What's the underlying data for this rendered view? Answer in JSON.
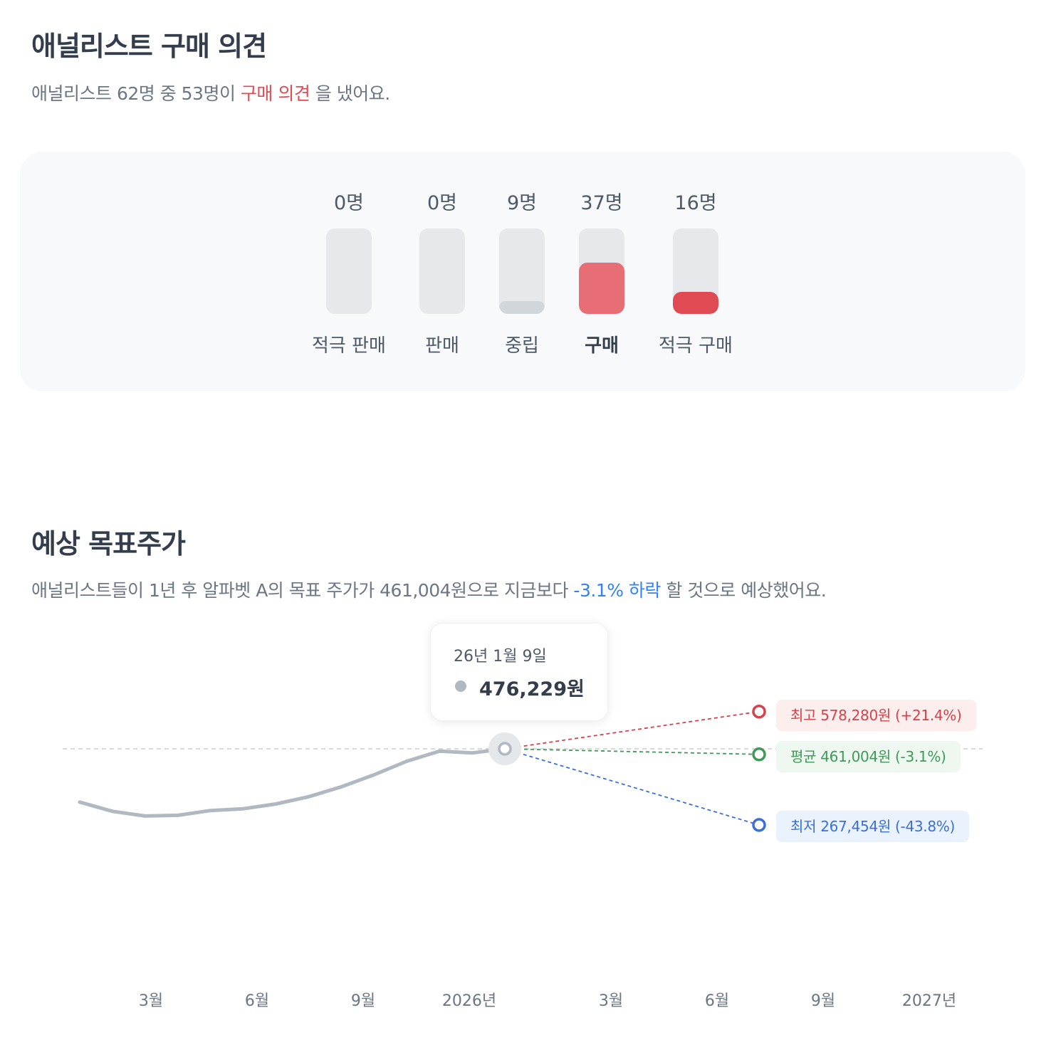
{
  "opinion": {
    "title": "애널리스트 구매 의견",
    "summary_prefix": "애널리스트 62명 중 53명이 ",
    "summary_highlight": "구매 의견",
    "summary_suffix": " 을 냈어요.",
    "columns": [
      {
        "count": "0명",
        "label": "적극 판매",
        "value": 0
      },
      {
        "count": "0명",
        "label": "판매",
        "value": 0
      },
      {
        "count": "9명",
        "label": "중립",
        "value": 9
      },
      {
        "count": "37명",
        "label": "구매",
        "value": 37
      },
      {
        "count": "16명",
        "label": "적극 구매",
        "value": 16
      }
    ]
  },
  "target": {
    "title": "예상 목표주가",
    "summary_prefix": "애널리스트들이 1년 후 알파벳 A의 목표 주가가 461,004원으로 지금보다 ",
    "summary_highlight": "-3.1% 하락",
    "summary_suffix": " 할 것으로 예상했어요."
  },
  "tooltip": {
    "date": "26년 1월 9일",
    "value": "476,229원"
  },
  "tags": {
    "high": "최고 578,280원 (+21.4%)",
    "avg": "평균 461,004원 (-3.1%)",
    "low": "최저 267,454원 (-43.8%)"
  },
  "colors": {
    "buy": "#e04a52",
    "buy_light": "#e66e74",
    "neutral": "#d1d6db",
    "track": "#e6e8ec",
    "price_line": "#b0b8c1",
    "high": "#d5424a",
    "avg": "#3e9a56",
    "low": "#3b6fd8"
  },
  "chart_data": {
    "type": "line",
    "x_ticks": [
      "3월",
      "6월",
      "9월",
      "2026년",
      "3월",
      "6월",
      "9월",
      "2027년"
    ],
    "price_series": [
      330000,
      305000,
      292000,
      294000,
      307000,
      312000,
      325000,
      345000,
      372000,
      405000,
      442000,
      470000,
      465000,
      476229
    ],
    "current_price": 476229,
    "forecast": {
      "high": 578280,
      "average": 461004,
      "low": 267454
    }
  }
}
